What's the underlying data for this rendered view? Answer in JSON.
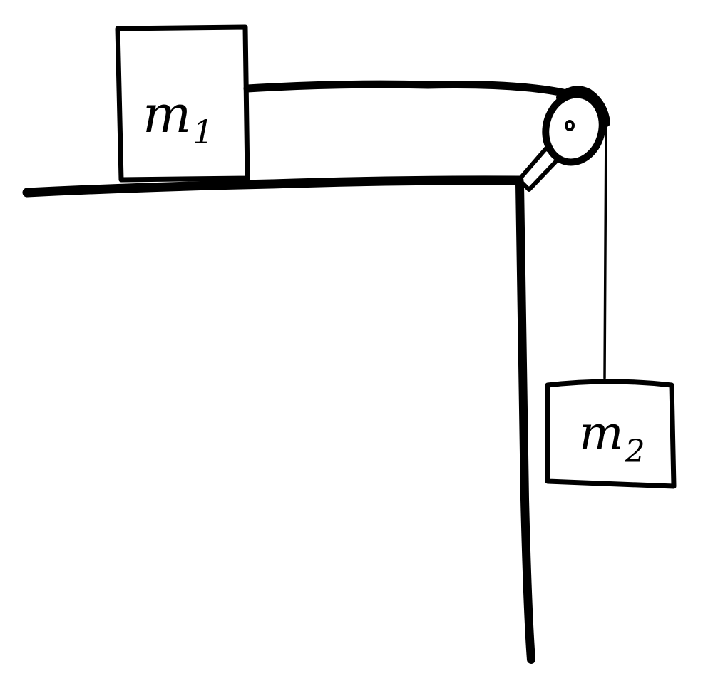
{
  "labels": {
    "mass1": "m",
    "mass1_sub": "1",
    "mass2": "m",
    "mass2_sub": "2"
  },
  "colors": {
    "ink": "#000000",
    "paper": "#ffffff"
  }
}
